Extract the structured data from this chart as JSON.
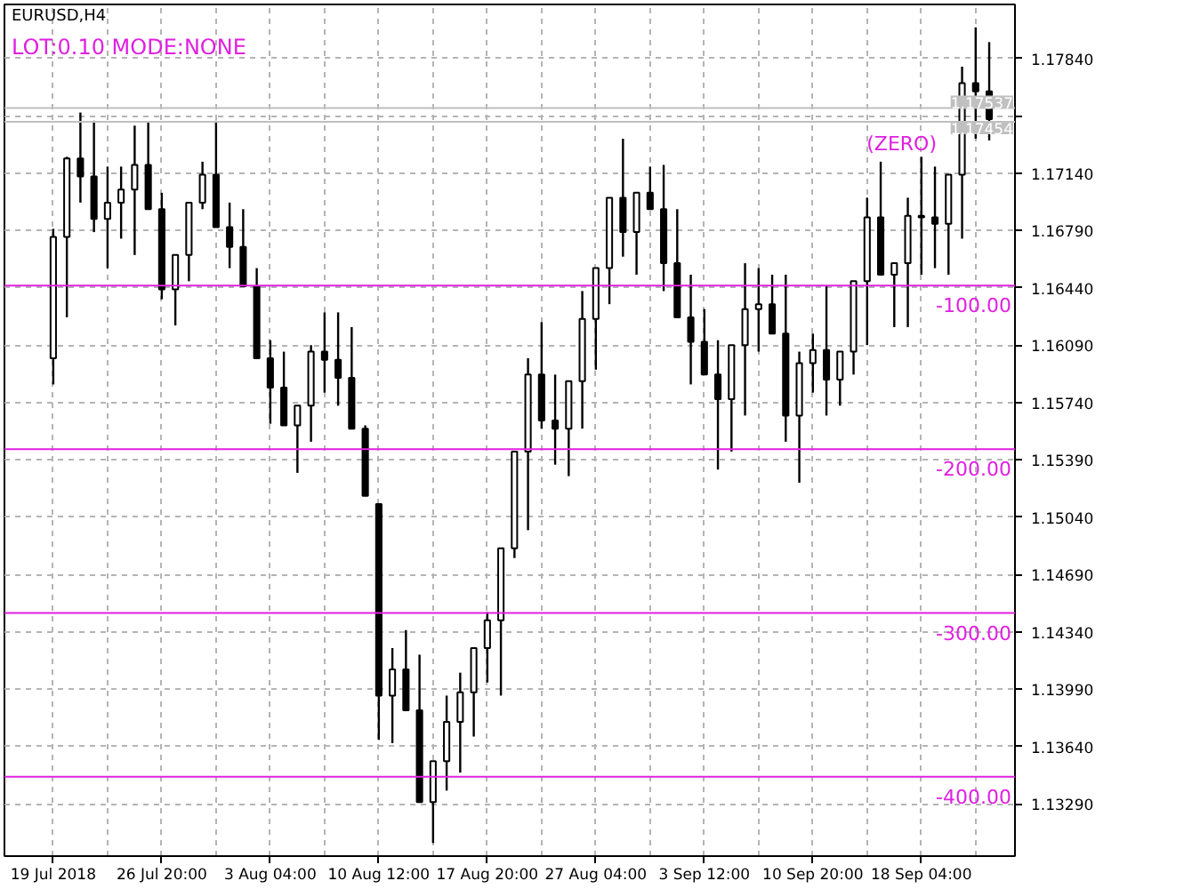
{
  "chart_data": {
    "type": "candlestick",
    "title": "EURUSD,H4",
    "subtitle": "LOT:0.10  MODE:NONE",
    "color": "#000000",
    "categories": [
      "19 Jul 2018",
      null,
      null,
      null,
      null,
      null,
      null,
      null,
      "26 Jul 20:00",
      null,
      null,
      null,
      null,
      null,
      null,
      null,
      "3 Aug 04:00",
      null,
      null,
      null,
      null,
      null,
      null,
      null,
      "10 Aug 12:00",
      null,
      null,
      null,
      null,
      null,
      null,
      null,
      "17 Aug 20:00",
      null,
      null,
      null,
      null,
      null,
      null,
      null,
      "27 Aug 04:00",
      null,
      null,
      null,
      null,
      null,
      null,
      null,
      "3 Sep 12:00",
      null,
      null,
      null,
      null,
      null,
      null,
      null,
      "10 Sep 20:00",
      null,
      null,
      null,
      null,
      null,
      null,
      null,
      "18 Sep 04:00",
      null,
      null,
      null,
      null,
      null
    ],
    "ohlc": [
      [
        1.1601,
        1.168,
        1.1585,
        1.1675
      ],
      [
        1.1675,
        1.1724,
        1.1626,
        1.1723
      ],
      [
        1.1723,
        1.1751,
        1.1696,
        1.1712
      ],
      [
        1.1712,
        1.1746,
        1.1678,
        1.1686
      ],
      [
        1.1686,
        1.1718,
        1.1656,
        1.1696
      ],
      [
        1.1696,
        1.1718,
        1.1674,
        1.1704
      ],
      [
        1.1704,
        1.1743,
        1.1664,
        1.1719
      ],
      [
        1.1719,
        1.1745,
        1.1692,
        1.1692
      ],
      [
        1.1692,
        1.1702,
        1.1637,
        1.1643
      ],
      [
        1.1643,
        1.1664,
        1.1621,
        1.1664
      ],
      [
        1.1664,
        1.1696,
        1.1648,
        1.1696
      ],
      [
        1.1696,
        1.1721,
        1.1692,
        1.1713
      ],
      [
        1.1713,
        1.1746,
        1.1681,
        1.1681
      ],
      [
        1.1681,
        1.1696,
        1.1656,
        1.1669
      ],
      [
        1.1669,
        1.1692,
        1.1645,
        1.1645
      ],
      [
        1.1645,
        1.1656,
        1.1601,
        1.1601
      ],
      [
        1.1601,
        1.1612,
        1.1561,
        1.1583
      ],
      [
        1.1583,
        1.1605,
        1.156,
        1.156
      ],
      [
        1.156,
        1.1572,
        1.1531,
        1.1572
      ],
      [
        1.1572,
        1.1609,
        1.155,
        1.1605
      ],
      [
        1.1605,
        1.1629,
        1.158,
        1.16
      ],
      [
        1.16,
        1.1629,
        1.1572,
        1.1589
      ],
      [
        1.1589,
        1.162,
        1.1558,
        1.1558
      ],
      [
        1.1558,
        1.156,
        1.1517,
        1.1517
      ],
      [
        1.1512,
        1.1512,
        1.1368,
        1.1395
      ],
      [
        1.1395,
        1.1424,
        1.1366,
        1.1411
      ],
      [
        1.1411,
        1.1435,
        1.1386,
        1.1386
      ],
      [
        1.1386,
        1.142,
        1.133,
        1.133
      ],
      [
        1.133,
        1.1355,
        1.1305,
        1.1355
      ],
      [
        1.1355,
        1.1395,
        1.1337,
        1.1379
      ],
      [
        1.1379,
        1.1409,
        1.1348,
        1.1397
      ],
      [
        1.1397,
        1.1424,
        1.137,
        1.1424
      ],
      [
        1.1424,
        1.1446,
        1.1403,
        1.1441
      ],
      [
        1.1441,
        1.1485,
        1.1395,
        1.1485
      ],
      [
        1.1485,
        1.1544,
        1.1479,
        1.1544
      ],
      [
        1.1544,
        1.1601,
        1.1496,
        1.1591
      ],
      [
        1.1591,
        1.1623,
        1.1558,
        1.1563
      ],
      [
        1.1563,
        1.1591,
        1.1536,
        1.1558
      ],
      [
        1.1558,
        1.1587,
        1.1529,
        1.1587
      ],
      [
        1.1587,
        1.1642,
        1.1558,
        1.1625
      ],
      [
        1.1625,
        1.1656,
        1.1594,
        1.1656
      ],
      [
        1.1656,
        1.1699,
        1.1634,
        1.1699
      ],
      [
        1.1699,
        1.1735,
        1.1663,
        1.1678
      ],
      [
        1.1678,
        1.1702,
        1.1652,
        1.1702
      ],
      [
        1.1702,
        1.1718,
        1.1692,
        1.1692
      ],
      [
        1.1692,
        1.1719,
        1.1642,
        1.1659
      ],
      [
        1.1659,
        1.1692,
        1.1626,
        1.1626
      ],
      [
        1.1626,
        1.1652,
        1.1585,
        1.1611
      ],
      [
        1.1611,
        1.1631,
        1.1591,
        1.1591
      ],
      [
        1.1591,
        1.1612,
        1.1533,
        1.1576
      ],
      [
        1.1576,
        1.1609,
        1.1544,
        1.1609
      ],
      [
        1.1609,
        1.1659,
        1.1566,
        1.1631
      ],
      [
        1.1631,
        1.1656,
        1.1605,
        1.1634
      ],
      [
        1.1634,
        1.1652,
        1.1616,
        1.1616
      ],
      [
        1.1616,
        1.1652,
        1.155,
        1.1566
      ],
      [
        1.1566,
        1.1605,
        1.1525,
        1.1598
      ],
      [
        1.1598,
        1.1616,
        1.158,
        1.1606
      ],
      [
        1.1606,
        1.1645,
        1.1566,
        1.1588
      ],
      [
        1.1588,
        1.1605,
        1.1572,
        1.1605
      ],
      [
        1.1605,
        1.1648,
        1.1591,
        1.1648
      ],
      [
        1.1648,
        1.1699,
        1.1609,
        1.1687
      ],
      [
        1.1687,
        1.1721,
        1.1652,
        1.1652
      ],
      [
        1.1652,
        1.1659,
        1.162,
        1.1659
      ],
      [
        1.1659,
        1.1699,
        1.162,
        1.1688
      ],
      [
        1.1688,
        1.1724,
        1.1652,
        1.1687
      ],
      [
        1.1687,
        1.1718,
        1.1656,
        1.1683
      ],
      [
        1.1683,
        1.1713,
        1.1652,
        1.1713
      ],
      [
        1.1713,
        1.1779,
        1.1674,
        1.1769
      ],
      [
        1.1769,
        1.1803,
        1.1735,
        1.1764
      ],
      [
        1.1764,
        1.1794,
        1.1734,
        1.1747
      ]
    ],
    "ylim": [
      1.1297,
      1.1817
    ],
    "yticks": [
      {
        "value": 1.1784,
        "label": "1.17840"
      },
      {
        "value": 1.1749,
        "label": null
      },
      {
        "value": 1.1714,
        "label": "1.17140"
      },
      {
        "value": 1.1679,
        "label": "1.16790"
      },
      {
        "value": 1.1644,
        "label": "1.16440"
      },
      {
        "value": 1.1609,
        "label": "1.16090"
      },
      {
        "value": 1.1574,
        "label": "1.15740"
      },
      {
        "value": 1.1539,
        "label": "1.15390"
      },
      {
        "value": 1.1504,
        "label": "1.15040"
      },
      {
        "value": 1.1469,
        "label": "1.14690"
      },
      {
        "value": 1.1434,
        "label": "1.14340"
      },
      {
        "value": 1.1399,
        "label": "1.13990"
      },
      {
        "value": 1.1364,
        "label": "1.13640"
      },
      {
        "value": 1.1329,
        "label": "1.13290"
      }
    ],
    "grid": true,
    "ref_lines": [
      {
        "axis": "y",
        "value": 1.17537,
        "label": "1.17537",
        "color": "#c0c0c0"
      },
      {
        "axis": "y",
        "value": 1.17454,
        "label": "1.17454",
        "color": "#c0c0c0"
      },
      {
        "axis": "y",
        "value": 1.16454,
        "color": "#e020e0"
      },
      {
        "axis": "y",
        "value": 1.15454,
        "color": "#e020e0"
      },
      {
        "axis": "y",
        "value": 1.14454,
        "color": "#e020e0"
      },
      {
        "axis": "y",
        "value": 1.13454,
        "color": "#e020e0"
      }
    ],
    "annotations": [
      {
        "text": "(ZERO)",
        "y": 1.17454
      },
      {
        "text": "-100.00",
        "y": 1.16454
      },
      {
        "text": "-200.00",
        "y": 1.15454
      },
      {
        "text": "-300.00",
        "y": 1.14454
      },
      {
        "text": "-400.00",
        "y": 1.13454
      }
    ]
  }
}
